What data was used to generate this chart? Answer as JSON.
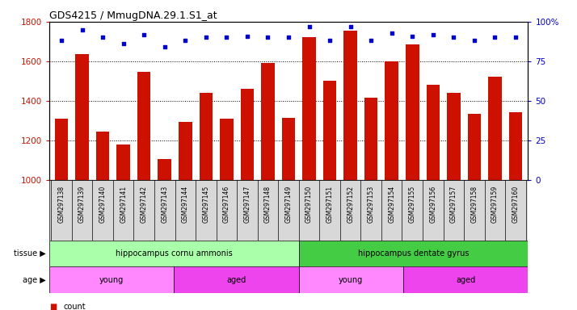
{
  "title": "GDS4215 / MmugDNA.29.1.S1_at",
  "samples": [
    "GSM297138",
    "GSM297139",
    "GSM297140",
    "GSM297141",
    "GSM297142",
    "GSM297143",
    "GSM297144",
    "GSM297145",
    "GSM297146",
    "GSM297147",
    "GSM297148",
    "GSM297149",
    "GSM297150",
    "GSM297151",
    "GSM297152",
    "GSM297153",
    "GSM297154",
    "GSM297155",
    "GSM297156",
    "GSM297157",
    "GSM297158",
    "GSM297159",
    "GSM297160"
  ],
  "counts": [
    1310,
    1635,
    1245,
    1180,
    1545,
    1105,
    1295,
    1440,
    1310,
    1460,
    1590,
    1315,
    1720,
    1500,
    1755,
    1415,
    1600,
    1685,
    1480,
    1440,
    1335,
    1520,
    1340
  ],
  "percentiles": [
    88,
    95,
    90,
    86,
    92,
    84,
    88,
    90,
    90,
    91,
    90,
    90,
    97,
    88,
    97,
    88,
    93,
    91,
    92,
    90,
    88,
    90,
    90
  ],
  "ylim_left": [
    1000,
    1800
  ],
  "ylim_right": [
    0,
    100
  ],
  "yticks_left": [
    1000,
    1200,
    1400,
    1600,
    1800
  ],
  "yticks_right": [
    0,
    25,
    50,
    75,
    100
  ],
  "bar_color": "#CC1100",
  "dot_color": "#0000CC",
  "bg_color": "#FFFFFF",
  "xticklabel_bg": "#D8D8D8",
  "tissue_groups": [
    {
      "label": "hippocampus cornu ammonis",
      "start": 0,
      "end": 12,
      "color": "#AAFFAA"
    },
    {
      "label": "hippocampus dentate gyrus",
      "start": 12,
      "end": 23,
      "color": "#44CC44"
    }
  ],
  "age_groups": [
    {
      "label": "young",
      "start": 0,
      "end": 6,
      "color": "#FF88FF"
    },
    {
      "label": "aged",
      "start": 6,
      "end": 12,
      "color": "#EE44EE"
    },
    {
      "label": "young",
      "start": 12,
      "end": 17,
      "color": "#FF88FF"
    },
    {
      "label": "aged",
      "start": 17,
      "end": 23,
      "color": "#EE44EE"
    }
  ]
}
